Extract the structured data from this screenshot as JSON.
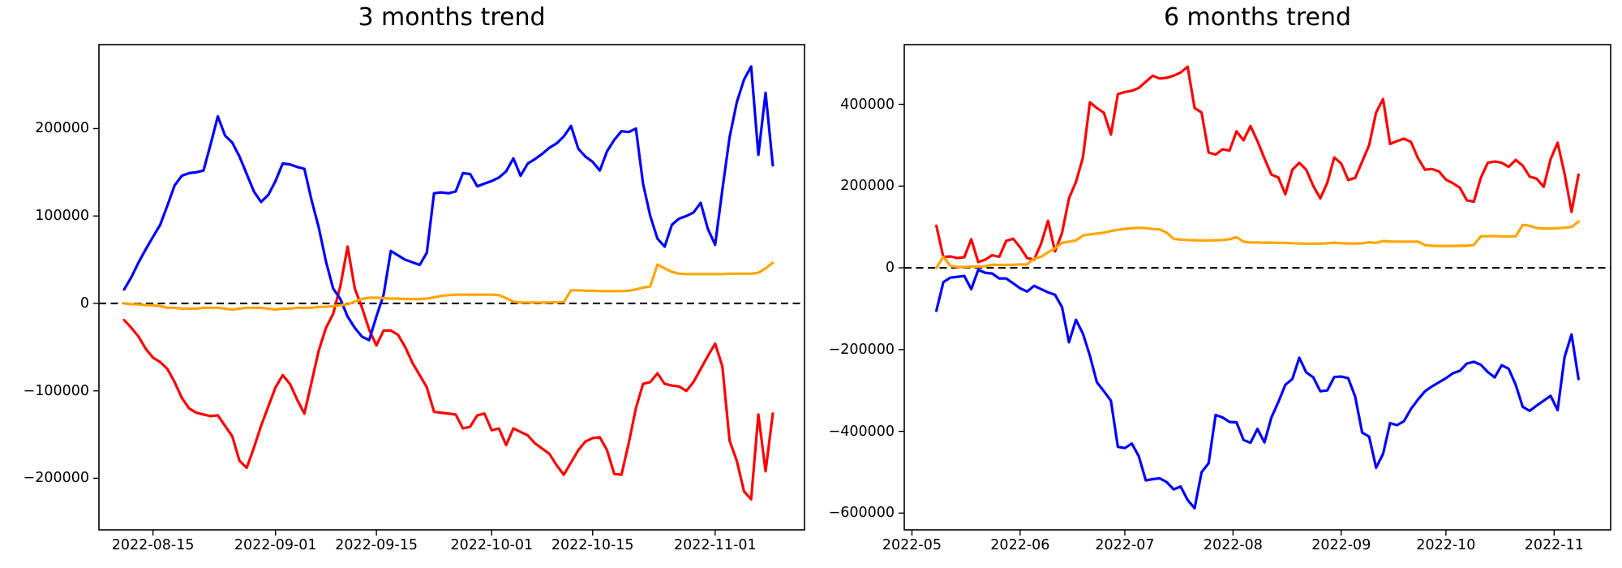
{
  "figure": {
    "background": "#ffffff",
    "spine_color": "#000000",
    "zero_line_color": "#000000"
  },
  "chart_data": [
    {
      "id": "three-months-trend",
      "type": "line",
      "title": "3 months trend",
      "x_start_date": "2022-08-11",
      "x_step_days": 1,
      "xlim_days": [
        -3.5,
        94.4
      ],
      "ylim": [
        -259000,
        296000
      ],
      "grid": false,
      "legend": null,
      "zero_line": true,
      "yticks": [
        {
          "value": 200000,
          "label": "200000"
        },
        {
          "value": 100000,
          "label": "100000"
        },
        {
          "value": 0,
          "label": "0"
        },
        {
          "value": -100000,
          "label": "−100000"
        },
        {
          "value": -200000,
          "label": "−200000"
        }
      ],
      "xticks": [
        {
          "day": 4,
          "label": "2022-08-15"
        },
        {
          "day": 21,
          "label": "2022-09-01"
        },
        {
          "day": 35,
          "label": "2022-09-15"
        },
        {
          "day": 51,
          "label": "2022-10-01"
        },
        {
          "day": 65,
          "label": "2022-10-15"
        },
        {
          "day": 82,
          "label": "2022-11-01"
        }
      ],
      "series": [
        {
          "name": "red-line",
          "color": "#ff0000",
          "values": [
            -19000,
            -28000,
            -38000,
            -52000,
            -62000,
            -67000,
            -75000,
            -90000,
            -108000,
            -120000,
            -125000,
            -127000,
            -129000,
            -128000,
            -140000,
            -152000,
            -180000,
            -188000,
            -165000,
            -140000,
            -118000,
            -96000,
            -82000,
            -92000,
            -110000,
            -126000,
            -90000,
            -54000,
            -28000,
            -12000,
            20000,
            65000,
            17000,
            -5000,
            -30000,
            -48000,
            -31000,
            -31000,
            -36000,
            -50000,
            -68000,
            -82000,
            -96000,
            -124000,
            -125000,
            -126000,
            -127000,
            -143000,
            -141000,
            -128000,
            -126000,
            -145000,
            -143000,
            -162000,
            -143000,
            -147000,
            -151000,
            -160000,
            -166000,
            -172000,
            -185000,
            -196000,
            -182000,
            -168000,
            -158000,
            -154000,
            -153000,
            -168000,
            -195000,
            -196000,
            -160000,
            -120000,
            -92000,
            -90000,
            -80000,
            -92000,
            -94000,
            -95000,
            -100000,
            -90000,
            -75000,
            -60000,
            -46000,
            -72000,
            -157000,
            -180000,
            -215000,
            -224000,
            -127000,
            -192000,
            -126000
          ]
        },
        {
          "name": "blue-line",
          "color": "#0000ff",
          "values": [
            16000,
            30000,
            47000,
            62000,
            76000,
            90000,
            112000,
            135000,
            146000,
            149000,
            150000,
            152000,
            182000,
            214000,
            192000,
            184000,
            168000,
            148000,
            128000,
            116000,
            124000,
            140000,
            160000,
            159000,
            156000,
            154000,
            118000,
            87000,
            48000,
            17000,
            5000,
            -15000,
            -28000,
            -38000,
            -42000,
            -15000,
            10000,
            60000,
            55000,
            50000,
            47000,
            44000,
            58000,
            126000,
            127000,
            126000,
            128000,
            149000,
            148000,
            134000,
            137000,
            140000,
            144000,
            151000,
            166000,
            146000,
            160000,
            165000,
            171000,
            178000,
            183000,
            191000,
            203000,
            177000,
            168000,
            162000,
            152000,
            174000,
            187000,
            197000,
            196000,
            200000,
            137000,
            100000,
            74000,
            65000,
            90000,
            97000,
            100000,
            104000,
            115000,
            85000,
            67000,
            130000,
            190000,
            230000,
            256000,
            271000,
            170000,
            241000,
            158000
          ]
        },
        {
          "name": "orange-line",
          "color": "#ffa500",
          "values": [
            0,
            -1000,
            -1000,
            -2000,
            -2000,
            -3000,
            -5000,
            -5000,
            -6000,
            -6000,
            -6000,
            -5000,
            -5000,
            -5000,
            -6000,
            -7000,
            -6000,
            -5000,
            -5000,
            -5000,
            -6000,
            -7000,
            -6000,
            -6000,
            -5000,
            -5000,
            -5000,
            -4000,
            -4000,
            -3000,
            -2000,
            -1000,
            2000,
            5000,
            6500,
            6500,
            6000,
            5500,
            5500,
            5000,
            5000,
            5000,
            5500,
            7000,
            8500,
            9500,
            10000,
            10000,
            10000,
            10000,
            10000,
            10000,
            9500,
            6000,
            2000,
            1000,
            1000,
            1000,
            1000,
            1000,
            1500,
            1500,
            15000,
            15000,
            14500,
            14500,
            14000,
            14000,
            14000,
            14000,
            14500,
            16000,
            18000,
            19500,
            44500,
            40000,
            36000,
            34000,
            33500,
            33500,
            33500,
            33500,
            33500,
            33500,
            34000,
            34000,
            34000,
            34000,
            35000,
            40000,
            46500
          ]
        }
      ]
    },
    {
      "id": "six-months-trend",
      "type": "line",
      "title": "6 months trend",
      "x_start_date": "2022-05-08",
      "x_step_days": 2,
      "xlim_days": [
        -9.2,
        193.2
      ],
      "ylim": [
        -641000,
        546000
      ],
      "grid": false,
      "legend": null,
      "zero_line": true,
      "yticks": [
        {
          "value": 400000,
          "label": "400000"
        },
        {
          "value": 200000,
          "label": "200000"
        },
        {
          "value": 0,
          "label": "0"
        },
        {
          "value": -200000,
          "label": "−200000"
        },
        {
          "value": -400000,
          "label": "−400000"
        },
        {
          "value": -600000,
          "label": "−600000"
        }
      ],
      "xticks": [
        {
          "day": -7,
          "label": "2022-05"
        },
        {
          "day": 24,
          "label": "2022-06"
        },
        {
          "day": 54,
          "label": "2022-07"
        },
        {
          "day": 85,
          "label": "2022-08"
        },
        {
          "day": 116,
          "label": "2022-09"
        },
        {
          "day": 146,
          "label": "2022-10"
        },
        {
          "day": 177,
          "label": "2022-11"
        }
      ],
      "series": [
        {
          "name": "red-line",
          "color": "#ff0000",
          "values": [
            103000,
            26000,
            28000,
            24000,
            26000,
            70000,
            14000,
            20000,
            31000,
            27000,
            66000,
            71000,
            50000,
            24000,
            20000,
            59000,
            115000,
            40000,
            85000,
            170000,
            210000,
            270000,
            405000,
            391000,
            379000,
            326000,
            425000,
            430000,
            433000,
            440000,
            455000,
            470000,
            463000,
            465000,
            470000,
            478000,
            492000,
            391000,
            380000,
            282000,
            277000,
            290000,
            287000,
            334000,
            312000,
            347000,
            310000,
            268000,
            228000,
            221000,
            180000,
            240000,
            257000,
            240000,
            200000,
            170000,
            208000,
            270000,
            255000,
            215000,
            220000,
            260000,
            300000,
            380000,
            413000,
            303000,
            310000,
            316000,
            308000,
            268000,
            240000,
            242000,
            236000,
            216000,
            207000,
            196000,
            165000,
            162000,
            220000,
            257000,
            260000,
            257000,
            247000,
            264000,
            250000,
            223000,
            218000,
            198000,
            266000,
            306000,
            230000,
            137000,
            228000
          ]
        },
        {
          "name": "blue-line",
          "color": "#0000ff",
          "values": [
            -105000,
            -35000,
            -24000,
            -22000,
            -20000,
            -52000,
            -5000,
            -12000,
            -14000,
            -26000,
            -26000,
            -38000,
            -50000,
            -58000,
            -44000,
            -52000,
            -60000,
            -66000,
            -96000,
            -182000,
            -127000,
            -161000,
            -215000,
            -280000,
            -302000,
            -325000,
            -438000,
            -441000,
            -430000,
            -461000,
            -520000,
            -517000,
            -515000,
            -524000,
            -542000,
            -535000,
            -568000,
            -588000,
            -500000,
            -478000,
            -360000,
            -366000,
            -377000,
            -378000,
            -421000,
            -428000,
            -394000,
            -427000,
            -366000,
            -328000,
            -286000,
            -272000,
            -220000,
            -256000,
            -268000,
            -302000,
            -300000,
            -267000,
            -266000,
            -270000,
            -315000,
            -403000,
            -413000,
            -489000,
            -455000,
            -380000,
            -385000,
            -375000,
            -345000,
            -322000,
            -302000,
            -290000,
            -280000,
            -270000,
            -258000,
            -252000,
            -234000,
            -230000,
            -237000,
            -255000,
            -268000,
            -238000,
            -247000,
            -286000,
            -340000,
            -350000,
            -337000,
            -325000,
            -313000,
            -348000,
            -218000,
            -163000,
            -272000
          ]
        },
        {
          "name": "orange-line",
          "color": "#ffa500",
          "values": [
            0,
            27000,
            5000,
            2000,
            2000,
            3000,
            3000,
            4000,
            7500,
            7000,
            7000,
            7500,
            8500,
            8000,
            23000,
            27000,
            38000,
            48000,
            61000,
            64000,
            67000,
            79000,
            82000,
            84000,
            86000,
            90000,
            93000,
            95000,
            97000,
            98000,
            97000,
            95000,
            94000,
            86000,
            71000,
            69000,
            68000,
            67500,
            67000,
            67000,
            67500,
            68000,
            70000,
            75000,
            64000,
            62000,
            62000,
            61500,
            61500,
            61000,
            61000,
            60000,
            59500,
            59000,
            59000,
            59000,
            60000,
            61500,
            60000,
            59500,
            59500,
            60000,
            62500,
            61000,
            65500,
            64500,
            64000,
            64000,
            64000,
            64000,
            55500,
            54000,
            53500,
            53500,
            53500,
            54000,
            54000,
            56000,
            77000,
            77500,
            77500,
            77000,
            77000,
            77000,
            105000,
            103000,
            97500,
            96500,
            96000,
            97000,
            98000,
            100000,
            113000
          ]
        }
      ]
    }
  ]
}
